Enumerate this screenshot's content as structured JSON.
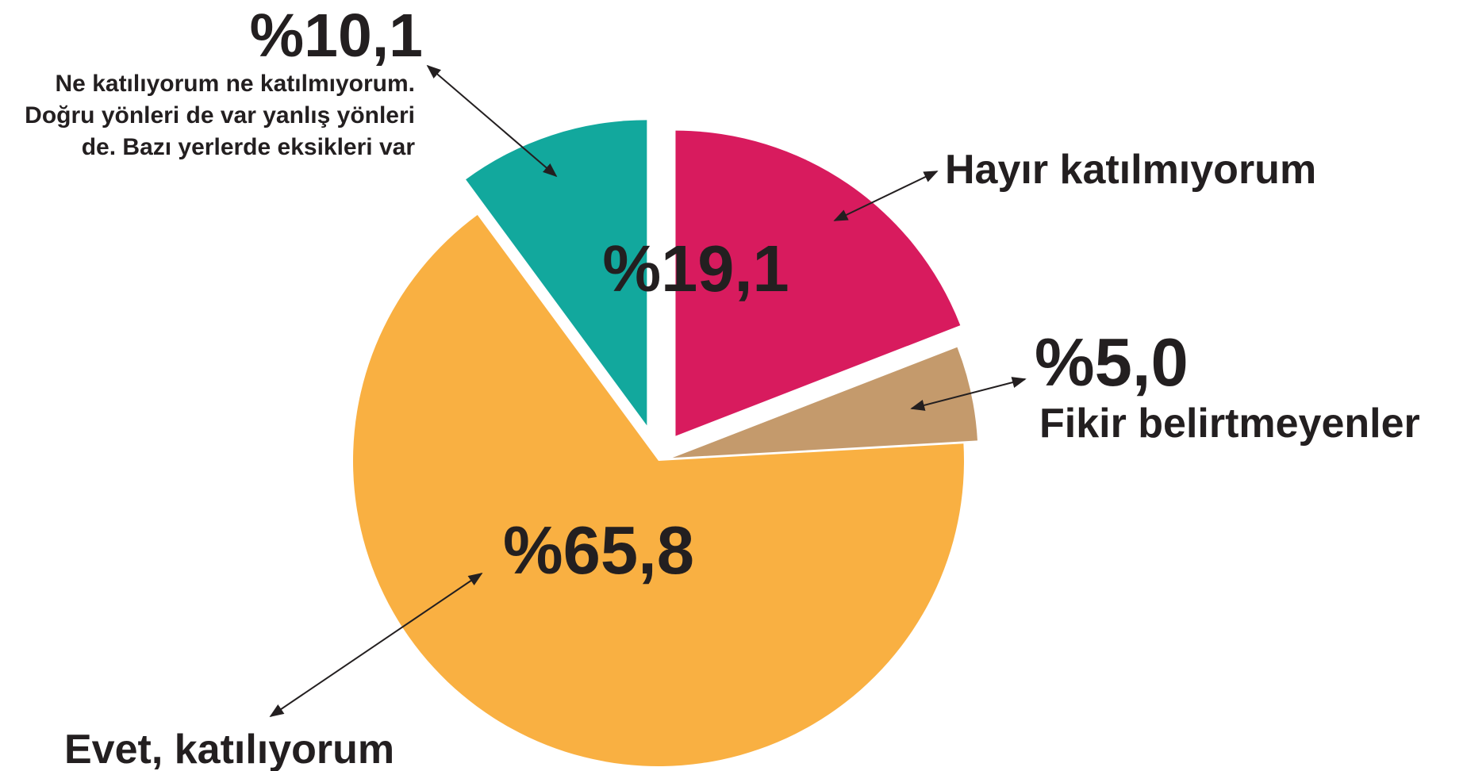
{
  "chart_data": {
    "type": "pie",
    "categories": [
      "Ne katılıyorum ne katılmıyorum. Doğru yönleri de var yanlış yönleri de. Bazı yerlerde eksikleri var",
      "Hayır katılmıyorum",
      "Fikir belirtmeyenler",
      "Evet, katılıyorum"
    ],
    "values": [
      10.1,
      19.1,
      5.0,
      65.8
    ],
    "value_labels": [
      "%10,1",
      "%19,1",
      "%5,0",
      "%65,8"
    ],
    "colors": [
      "#12a89d",
      "#d81b5e",
      "#c49a6c",
      "#f9b042"
    ]
  }
}
